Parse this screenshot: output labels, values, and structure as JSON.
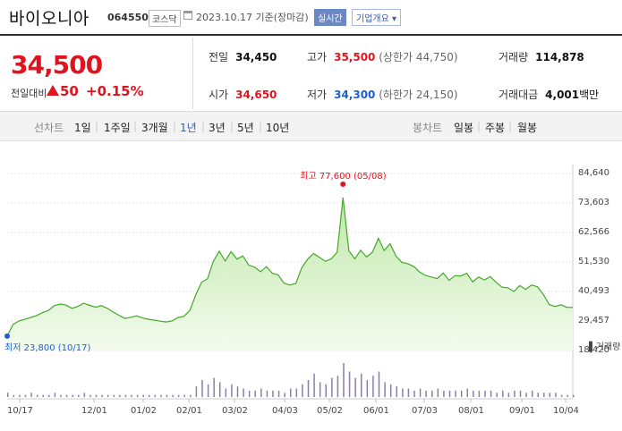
{
  "header": {
    "name": "바이오니아",
    "code": "064550",
    "market": "코스닥",
    "date": "2023.10.17 기준(장마감)",
    "realtime_label": "실시간",
    "info_label": "기업개요 ▾"
  },
  "quote": {
    "price": "34,500",
    "change_label": "전일대비",
    "change_amount": "50",
    "change_pct": "+0.15%",
    "prev_close_label": "전일",
    "prev_close": "34,450",
    "high_label": "고가",
    "high": "35,500",
    "upper_limit_text": "(상한가 44,750)",
    "volume_label": "거래량",
    "volume": "114,878",
    "open_label": "시가",
    "open": "34,650",
    "low_label": "저가",
    "low": "34,300",
    "lower_limit_text": "(하한가 24,150)",
    "amount_label": "거래대금",
    "amount": "4,001",
    "amount_unit": "백만"
  },
  "tabs": {
    "line_label": "선차트",
    "periods": [
      "1일",
      "1주일",
      "3개월",
      "1년",
      "3년",
      "5년",
      "10년"
    ],
    "selected_period": "1년",
    "candle_label": "봉차트",
    "candles": [
      "일봉",
      "주봉",
      "월봉"
    ]
  },
  "chart_data": {
    "type": "area",
    "y_ticks": [
      "84,640",
      "73,603",
      "62,566",
      "51,530",
      "40,493",
      "29,457",
      "18,420"
    ],
    "ylim": [
      18420,
      84640
    ],
    "x_ticks": [
      "10/17",
      "12/01",
      "01/02",
      "02/01",
      "03/02",
      "04/03",
      "05/02",
      "06/01",
      "07/03",
      "08/01",
      "09/01",
      "10/04"
    ],
    "high_annotation": "최고 77,600 (05/08)",
    "low_annotation": "최저 23,800 (10/17)",
    "volume_label": "거래량",
    "series": [
      {
        "values": [
          23800,
          28200,
          29500,
          30100,
          30800,
          31500,
          32600,
          33400,
          35200,
          35800,
          35400,
          34200,
          34900,
          36100,
          35300,
          34600,
          35200,
          34200,
          32800,
          31600,
          30400,
          30900,
          31400,
          30600,
          30100,
          29800,
          29400,
          29100,
          29500,
          30800,
          31200,
          33400,
          39200,
          44000,
          45200,
          51800,
          55600,
          51900,
          55400,
          52600,
          53800,
          50400,
          49600,
          47900,
          49800,
          47300,
          46700,
          43600,
          42900,
          43500,
          49400,
          52600,
          54700,
          53300,
          51800,
          52700,
          55200,
          75600,
          55700,
          52700,
          55900,
          53400,
          55200,
          60400,
          55800,
          58400,
          53700,
          51400,
          50900,
          49900,
          47800,
          46500,
          45900,
          45300,
          47400,
          44600,
          46400,
          46300,
          47300,
          44100,
          45900,
          44800,
          46100,
          43900,
          42100,
          41900,
          40500,
          42700,
          41300,
          42900,
          42300,
          39400,
          35600,
          34900,
          35500,
          34600,
          34500
        ],
        "color": "#43a829"
      }
    ],
    "volume": [
      2,
      1,
      1,
      1,
      2,
      1,
      1,
      1,
      2,
      1,
      1,
      1,
      1,
      2,
      1,
      1,
      1,
      1,
      1,
      1,
      1,
      1,
      1,
      1,
      1,
      1,
      1,
      1,
      1,
      1,
      1,
      1,
      5,
      8,
      6,
      9,
      7,
      4,
      6,
      5,
      4,
      3,
      3,
      4,
      3,
      3,
      3,
      2,
      4,
      4,
      6,
      8,
      11,
      7,
      6,
      9,
      10,
      16,
      12,
      9,
      11,
      8,
      10,
      12,
      7,
      6,
      5,
      4,
      4,
      3,
      4,
      3,
      3,
      4,
      3,
      3,
      3,
      3,
      4,
      3,
      3,
      3,
      3,
      2,
      3,
      2,
      3,
      3,
      2,
      3,
      2,
      2,
      2,
      2,
      1,
      1,
      1
    ]
  }
}
